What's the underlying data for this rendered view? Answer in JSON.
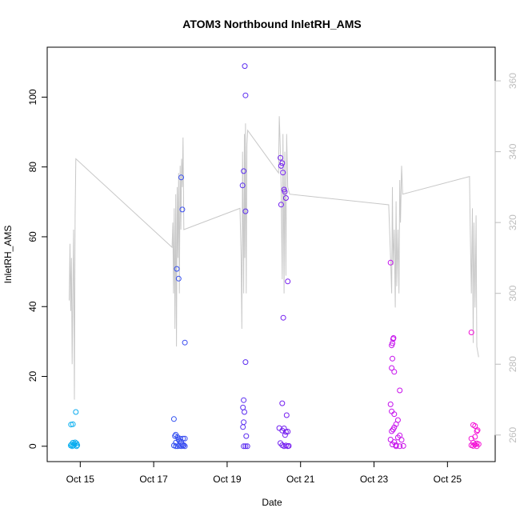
{
  "chart_data": {
    "type": "scatter",
    "title": "ATOM3 Northbound InletRH_AMS",
    "xlabel": "Date",
    "ylabel": "InletRH_AMS",
    "x_unit": "days (October, fractional day-of-month)",
    "xlim": [
      14.1,
      26.3
    ],
    "ylim": [
      -4.4,
      114.3
    ],
    "y2lim": [
      252.5,
      369.5
    ],
    "x_ticks": [
      {
        "value": 15,
        "label": "Oct 15"
      },
      {
        "value": 17,
        "label": "Oct 17"
      },
      {
        "value": 19,
        "label": "Oct 19"
      },
      {
        "value": 21,
        "label": "Oct 21"
      },
      {
        "value": 23,
        "label": "Oct 23"
      },
      {
        "value": 25,
        "label": "Oct 25"
      }
    ],
    "y_ticks": [
      0,
      20,
      40,
      60,
      80,
      100
    ],
    "y2_ticks": [
      260,
      280,
      300,
      320,
      340,
      360
    ],
    "grid": false,
    "point_color_scale": [
      "#00c8f0",
      "#2a58f0",
      "#6a20f0",
      "#c010f0",
      "#ff10d0"
    ],
    "series": [
      {
        "style": "points",
        "points": [
          [
            14.75,
            6.2
          ],
          [
            14.8,
            6.3
          ],
          [
            14.88,
            9.8
          ],
          [
            14.76,
            0.5
          ],
          [
            14.8,
            1.0
          ],
          [
            14.84,
            0.6
          ],
          [
            14.9,
            0.0
          ],
          [
            14.74,
            0.2
          ],
          [
            14.86,
            1.1
          ],
          [
            14.92,
            0.3
          ],
          [
            14.78,
            0.0
          ],
          [
            14.82,
            0.2
          ],
          [
            14.9,
            0.8
          ],
          [
            17.55,
            7.8
          ],
          [
            17.6,
            3.3
          ],
          [
            17.63,
            50.8
          ],
          [
            17.68,
            48.0
          ],
          [
            17.75,
            77.0
          ],
          [
            17.78,
            67.8
          ],
          [
            17.85,
            29.7
          ],
          [
            17.6,
            1.0
          ],
          [
            17.65,
            2.6
          ],
          [
            17.7,
            1.5
          ],
          [
            17.72,
            2.2
          ],
          [
            17.75,
            1.3
          ],
          [
            17.78,
            0.5
          ],
          [
            17.8,
            2.2
          ],
          [
            17.82,
            0.3
          ],
          [
            17.85,
            2.2
          ],
          [
            17.55,
            0.2
          ],
          [
            17.6,
            0.0
          ],
          [
            17.65,
            0.0
          ],
          [
            17.7,
            0.1
          ],
          [
            17.75,
            0.0
          ],
          [
            17.8,
            0.1
          ],
          [
            17.85,
            0.0
          ],
          [
            17.58,
            2.9
          ],
          [
            17.68,
            1.9
          ],
          [
            19.42,
            74.7
          ],
          [
            19.45,
            78.8
          ],
          [
            19.48,
            108.9
          ],
          [
            19.5,
            100.5
          ],
          [
            19.5,
            67.3
          ],
          [
            19.5,
            24.1
          ],
          [
            19.43,
            11.1
          ],
          [
            19.45,
            13.2
          ],
          [
            19.47,
            9.8
          ],
          [
            19.45,
            6.9
          ],
          [
            19.43,
            5.5
          ],
          [
            19.52,
            2.9
          ],
          [
            19.45,
            0.0
          ],
          [
            19.5,
            0.0
          ],
          [
            19.55,
            0.0
          ],
          [
            20.45,
            82.6
          ],
          [
            20.47,
            80.3
          ],
          [
            20.5,
            81.1
          ],
          [
            20.52,
            78.4
          ],
          [
            20.55,
            73.5
          ],
          [
            20.57,
            72.9
          ],
          [
            20.6,
            71.1
          ],
          [
            20.47,
            69.2
          ],
          [
            20.65,
            47.2
          ],
          [
            20.53,
            36.8
          ],
          [
            20.5,
            12.3
          ],
          [
            20.62,
            8.9
          ],
          [
            20.42,
            5.2
          ],
          [
            20.5,
            4.5
          ],
          [
            20.55,
            5.1
          ],
          [
            20.6,
            4.1
          ],
          [
            20.58,
            3.2
          ],
          [
            20.65,
            4.2
          ],
          [
            20.45,
            0.9
          ],
          [
            20.5,
            0.3
          ],
          [
            20.55,
            0.0
          ],
          [
            20.6,
            0.2
          ],
          [
            20.65,
            0.0
          ],
          [
            20.68,
            0.1
          ],
          [
            23.45,
            52.6
          ],
          [
            23.52,
            30.7
          ],
          [
            23.48,
            28.9
          ],
          [
            23.5,
            29.5
          ],
          [
            23.53,
            31.0
          ],
          [
            23.5,
            25.1
          ],
          [
            23.48,
            22.4
          ],
          [
            23.55,
            21.3
          ],
          [
            23.7,
            16.0
          ],
          [
            23.45,
            12.0
          ],
          [
            23.48,
            10.0
          ],
          [
            23.55,
            9.2
          ],
          [
            23.65,
            7.5
          ],
          [
            23.6,
            6.3
          ],
          [
            23.55,
            5.4
          ],
          [
            23.52,
            4.8
          ],
          [
            23.48,
            4.3
          ],
          [
            23.45,
            1.9
          ],
          [
            23.5,
            0.5
          ],
          [
            23.55,
            1.2
          ],
          [
            23.6,
            0.3
          ],
          [
            23.65,
            2.5
          ],
          [
            23.7,
            3.1
          ],
          [
            23.75,
            1.8
          ],
          [
            23.6,
            0.0
          ],
          [
            23.7,
            0.0
          ],
          [
            23.8,
            0.1
          ],
          [
            25.65,
            32.6
          ],
          [
            25.7,
            6.1
          ],
          [
            25.75,
            5.8
          ],
          [
            25.8,
            4.3
          ],
          [
            25.82,
            4.6
          ],
          [
            25.65,
            2.2
          ],
          [
            25.7,
            1.0
          ],
          [
            25.75,
            2.7
          ],
          [
            25.8,
            0.8
          ],
          [
            25.65,
            0.3
          ],
          [
            25.7,
            0.1
          ],
          [
            25.75,
            0.5
          ],
          [
            25.8,
            0.0
          ],
          [
            25.85,
            0.6
          ]
        ]
      },
      {
        "style": "line",
        "color": "#c8c8c8",
        "axis": "right",
        "points": [
          [
            14.7,
            298
          ],
          [
            14.72,
            314
          ],
          [
            14.74,
            295
          ],
          [
            14.76,
            310
          ],
          [
            14.78,
            280
          ],
          [
            14.8,
            300
          ],
          [
            14.82,
            318
          ],
          [
            14.84,
            270
          ],
          [
            14.86,
            322
          ],
          [
            14.88,
            338
          ],
          [
            17.5,
            313
          ],
          [
            17.52,
            320
          ],
          [
            17.54,
            300
          ],
          [
            17.56,
            324
          ],
          [
            17.58,
            290
          ],
          [
            17.6,
            328
          ],
          [
            17.62,
            285
          ],
          [
            17.64,
            330
          ],
          [
            17.66,
            310
          ],
          [
            17.68,
            334
          ],
          [
            17.7,
            300
          ],
          [
            17.72,
            336
          ],
          [
            17.74,
            318
          ],
          [
            17.76,
            338
          ],
          [
            17.78,
            330
          ],
          [
            17.8,
            344
          ],
          [
            17.82,
            318
          ],
          [
            19.35,
            324
          ],
          [
            19.38,
            310
          ],
          [
            19.4,
            290
          ],
          [
            19.42,
            340
          ],
          [
            19.45,
            300
          ],
          [
            19.47,
            345
          ],
          [
            19.48,
            310
          ],
          [
            19.5,
            348
          ],
          [
            19.52,
            300
          ],
          [
            19.54,
            342
          ],
          [
            19.56,
            346
          ],
          [
            20.4,
            334
          ],
          [
            20.42,
            350
          ],
          [
            20.45,
            340
          ],
          [
            20.47,
            330
          ],
          [
            20.5,
            304
          ],
          [
            20.52,
            345
          ],
          [
            20.55,
            300
          ],
          [
            20.57,
            340
          ],
          [
            20.6,
            305
          ],
          [
            20.62,
            345
          ],
          [
            20.65,
            330
          ],
          [
            20.7,
            328
          ],
          [
            23.4,
            325
          ],
          [
            23.45,
            310
          ],
          [
            23.48,
            300
          ],
          [
            23.5,
            330
          ],
          [
            23.52,
            308
          ],
          [
            23.55,
            318
          ],
          [
            23.58,
            296
          ],
          [
            23.6,
            326
          ],
          [
            23.62,
            302
          ],
          [
            23.65,
            318
          ],
          [
            23.68,
            300
          ],
          [
            23.7,
            332
          ],
          [
            23.72,
            320
          ],
          [
            23.75,
            336
          ],
          [
            23.78,
            328
          ],
          [
            25.6,
            333
          ],
          [
            25.62,
            318
          ],
          [
            25.65,
            300
          ],
          [
            25.68,
            324
          ],
          [
            25.7,
            286
          ],
          [
            25.72,
            320
          ],
          [
            25.75,
            296
          ],
          [
            25.78,
            322
          ],
          [
            25.8,
            285
          ],
          [
            25.85,
            282
          ]
        ]
      }
    ]
  }
}
